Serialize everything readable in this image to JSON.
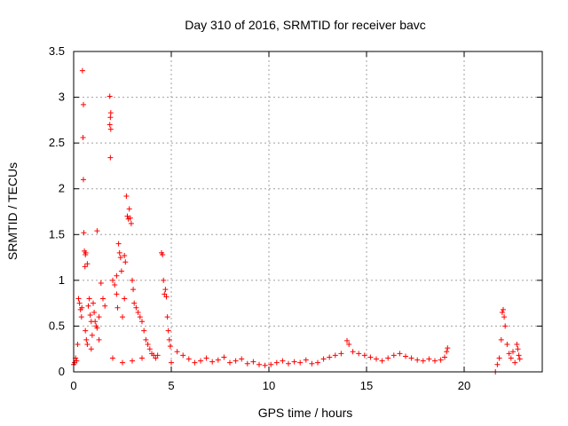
{
  "chart_data": {
    "type": "scatter",
    "title": "Day 310 of 2016, SRMTID for receiver bavc",
    "xlabel": "GPS time / hours",
    "ylabel": "SRMTID / TECUs",
    "xlim": [
      0,
      24
    ],
    "ylim": [
      0,
      3.5
    ],
    "grid": true,
    "marker": "+",
    "colors": {
      "series": "#ff0000",
      "axis": "#000000",
      "grid": "#a0a0a0"
    },
    "x_ticks": [
      0,
      5,
      10,
      15,
      20
    ],
    "x_tick_labels": [
      "0",
      "5",
      "10",
      "15",
      "20"
    ],
    "y_ticks": [
      0,
      0.5,
      1,
      1.5,
      2,
      2.5,
      3,
      3.5
    ],
    "y_tick_labels": [
      "0",
      "0.5",
      "1",
      "1.5",
      "2",
      "2.5",
      "3",
      "3.5"
    ],
    "series": [
      {
        "name": "SRMTID",
        "points": [
          [
            0.45,
            3.29
          ],
          [
            0.5,
            2.92
          ],
          [
            0.48,
            2.56
          ],
          [
            0.5,
            2.1
          ],
          [
            0.52,
            1.52
          ],
          [
            0.55,
            1.32
          ],
          [
            0.6,
            1.28
          ],
          [
            0.62,
            1.3
          ],
          [
            0.58,
            1.15
          ],
          [
            0.7,
            1.18
          ],
          [
            0.8,
            0.8
          ],
          [
            0.75,
            0.72
          ],
          [
            0.85,
            0.62
          ],
          [
            0.9,
            0.55
          ],
          [
            1.0,
            0.75
          ],
          [
            1.05,
            0.65
          ],
          [
            1.1,
            0.55
          ],
          [
            1.15,
            0.5
          ],
          [
            1.2,
            0.48
          ],
          [
            1.3,
            0.6
          ],
          [
            0.3,
            0.75
          ],
          [
            0.35,
            0.68
          ],
          [
            0.4,
            0.6
          ],
          [
            0.42,
            0.7
          ],
          [
            0.25,
            0.8
          ],
          [
            0.2,
            0.3
          ],
          [
            0.1,
            0.15
          ],
          [
            0.15,
            0.12
          ],
          [
            0.05,
            0.1
          ],
          [
            0.0,
            0.08
          ],
          [
            0.6,
            0.45
          ],
          [
            0.65,
            0.35
          ],
          [
            0.7,
            0.3
          ],
          [
            0.9,
            0.25
          ],
          [
            0.95,
            0.4
          ],
          [
            1.2,
            1.54
          ],
          [
            1.4,
            0.97
          ],
          [
            1.5,
            0.8
          ],
          [
            1.6,
            0.72
          ],
          [
            1.3,
            0.35
          ],
          [
            1.85,
            3.01
          ],
          [
            1.9,
            2.83
          ],
          [
            1.88,
            2.78
          ],
          [
            1.85,
            2.7
          ],
          [
            1.9,
            2.65
          ],
          [
            1.88,
            2.34
          ],
          [
            2.0,
            1.0
          ],
          [
            2.1,
            0.95
          ],
          [
            2.2,
            1.05
          ],
          [
            2.25,
            0.7
          ],
          [
            2.3,
            1.4
          ],
          [
            2.35,
            1.3
          ],
          [
            2.4,
            1.25
          ],
          [
            2.2,
            0.85
          ],
          [
            2.5,
            0.6
          ],
          [
            2.45,
            1.1
          ],
          [
            2.6,
            1.27
          ],
          [
            2.65,
            1.2
          ],
          [
            2.7,
            1.92
          ],
          [
            2.75,
            1.7
          ],
          [
            2.8,
            1.67
          ],
          [
            2.85,
            1.78
          ],
          [
            2.9,
            1.68
          ],
          [
            2.95,
            1.62
          ],
          [
            2.6,
            0.8
          ],
          [
            3.0,
            1.0
          ],
          [
            3.05,
            0.9
          ],
          [
            3.1,
            0.75
          ],
          [
            3.2,
            0.7
          ],
          [
            3.3,
            0.65
          ],
          [
            3.4,
            0.6
          ],
          [
            3.5,
            0.55
          ],
          [
            3.6,
            0.45
          ],
          [
            3.7,
            0.35
          ],
          [
            3.8,
            0.3
          ],
          [
            3.9,
            0.25
          ],
          [
            4.0,
            0.2
          ],
          [
            4.1,
            0.18
          ],
          [
            4.2,
            0.15
          ],
          [
            4.3,
            0.18
          ],
          [
            4.5,
            1.3
          ],
          [
            4.55,
            1.28
          ],
          [
            4.6,
            1.0
          ],
          [
            4.65,
            0.85
          ],
          [
            4.7,
            0.9
          ],
          [
            4.75,
            0.82
          ],
          [
            4.8,
            0.6
          ],
          [
            4.85,
            0.45
          ],
          [
            4.9,
            0.35
          ],
          [
            4.95,
            0.28
          ],
          [
            2.0,
            0.15
          ],
          [
            2.5,
            0.1
          ],
          [
            3.0,
            0.12
          ],
          [
            3.5,
            0.15
          ],
          [
            5.0,
            0.1
          ],
          [
            5.3,
            0.22
          ],
          [
            5.6,
            0.18
          ],
          [
            5.9,
            0.14
          ],
          [
            6.2,
            0.1
          ],
          [
            6.5,
            0.12
          ],
          [
            6.8,
            0.15
          ],
          [
            7.1,
            0.11
          ],
          [
            7.4,
            0.13
          ],
          [
            7.7,
            0.16
          ],
          [
            8.0,
            0.1
          ],
          [
            8.3,
            0.12
          ],
          [
            8.6,
            0.14
          ],
          [
            8.9,
            0.09
          ],
          [
            9.2,
            0.11
          ],
          [
            9.5,
            0.08
          ],
          [
            9.8,
            0.07
          ],
          [
            10.1,
            0.08
          ],
          [
            10.4,
            0.1
          ],
          [
            10.7,
            0.12
          ],
          [
            11.0,
            0.09
          ],
          [
            11.3,
            0.11
          ],
          [
            11.6,
            0.1
          ],
          [
            11.9,
            0.13
          ],
          [
            12.2,
            0.09
          ],
          [
            12.5,
            0.1
          ],
          [
            12.8,
            0.14
          ],
          [
            13.1,
            0.16
          ],
          [
            13.4,
            0.18
          ],
          [
            13.7,
            0.2
          ],
          [
            14.0,
            0.34
          ],
          [
            14.1,
            0.3
          ],
          [
            14.3,
            0.22
          ],
          [
            14.6,
            0.2
          ],
          [
            14.9,
            0.18
          ],
          [
            15.2,
            0.16
          ],
          [
            15.5,
            0.14
          ],
          [
            15.8,
            0.12
          ],
          [
            16.1,
            0.15
          ],
          [
            16.4,
            0.18
          ],
          [
            16.7,
            0.2
          ],
          [
            17.0,
            0.17
          ],
          [
            17.3,
            0.15
          ],
          [
            17.6,
            0.13
          ],
          [
            17.9,
            0.12
          ],
          [
            18.2,
            0.14
          ],
          [
            18.5,
            0.12
          ],
          [
            18.8,
            0.13
          ],
          [
            19.0,
            0.16
          ],
          [
            19.1,
            0.22
          ],
          [
            19.15,
            0.26
          ],
          [
            21.6,
            0.0
          ],
          [
            21.7,
            0.08
          ],
          [
            21.8,
            0.15
          ],
          [
            21.9,
            0.35
          ],
          [
            21.95,
            0.65
          ],
          [
            22.0,
            0.68
          ],
          [
            22.05,
            0.6
          ],
          [
            22.1,
            0.5
          ],
          [
            22.2,
            0.3
          ],
          [
            22.3,
            0.2
          ],
          [
            22.4,
            0.15
          ],
          [
            22.5,
            0.22
          ],
          [
            22.6,
            0.1
          ],
          [
            22.7,
            0.3
          ],
          [
            22.75,
            0.25
          ],
          [
            22.8,
            0.18
          ],
          [
            22.85,
            0.14
          ]
        ]
      }
    ]
  }
}
